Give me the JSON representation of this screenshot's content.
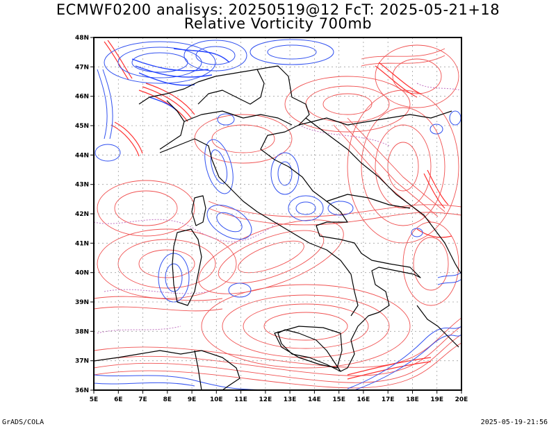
{
  "header": {
    "title_line1": "ECMWF0200 analisys: 20250519@12 FcT: 2025-05-21+18",
    "title_line2": "Relative Vorticity 700mb"
  },
  "footer": {
    "left": "GrADS/COLA",
    "right": "2025-05-19-21:56"
  },
  "map": {
    "lat_labels": [
      "48N",
      "47N",
      "46N",
      "45N",
      "44N",
      "43N",
      "42N",
      "41N",
      "40N",
      "39N",
      "38N",
      "37N",
      "36N"
    ],
    "lon_labels": [
      "5E",
      "6E",
      "7E",
      "8E",
      "9E",
      "10E",
      "11E",
      "12E",
      "13E",
      "14E",
      "15E",
      "16E",
      "17E",
      "18E",
      "19E",
      "20E"
    ],
    "lon_range": [
      5,
      20
    ],
    "lat_range": [
      36,
      48
    ],
    "colors": {
      "positive_vorticity": "#f05050",
      "negative_vorticity": "#3050f0",
      "zero_line": "#c070c0",
      "coastline": "#000000",
      "grid": "#a0a0a0"
    }
  }
}
